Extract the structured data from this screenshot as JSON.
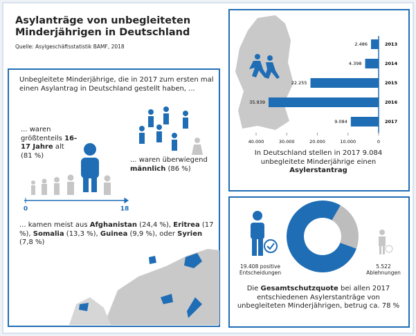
{
  "header": {
    "title": "Asylanträge von unbegleiteten Minderjährigen in Deutschland",
    "source": "Quelle: Asylgeschäftsstatistik BAMF, 2018"
  },
  "left": {
    "intro": "Unbegleitete Minderjährige, die in 2017 zum ersten mal einen Asylantrag in Deutschland gestellt haben, ...",
    "age": [
      {
        "text": "... waren größtenteils "
      },
      {
        "text": "16-17 Jahre",
        "bold": true
      },
      {
        "text": " alt (81 %)"
      }
    ],
    "gender": [
      {
        "text": "... waren überwiegend "
      },
      {
        "text": "männlich",
        "bold": true
      },
      {
        "text": " (86 %)"
      }
    ],
    "age_scale": [
      0,
      18
    ],
    "countries": [
      {
        "text": "... kamen meist aus "
      },
      {
        "text": "Afghanistan",
        "bold": true
      },
      {
        "text": " (24,4 %), "
      },
      {
        "text": "Eritrea",
        "bold": true
      },
      {
        "text": " (17 %), "
      },
      {
        "text": "Somalia",
        "bold": true
      },
      {
        "text": " (13,3 %), "
      },
      {
        "text": "Guinea",
        "bold": true
      },
      {
        "text": " (9,9 %), oder "
      },
      {
        "text": "Syrien",
        "bold": true
      },
      {
        "text": " (7,8 %)"
      }
    ]
  },
  "chart_data": [
    {
      "type": "bar",
      "orientation": "horizontal",
      "categories": [
        "2013",
        "2014",
        "2015",
        "2016",
        "2017"
      ],
      "values": [
        2486,
        4398,
        22255,
        35939,
        9084
      ],
      "value_labels": [
        "2.486",
        "4.398",
        "22.255",
        "35.939",
        "9.084"
      ],
      "color": "#1f6db5",
      "xlim": [
        40000,
        0
      ],
      "xticks": [
        {
          "value": 40000,
          "label": "40.000"
        },
        {
          "value": 30000,
          "label": "30.000"
        },
        {
          "value": 20000,
          "label": "20.000"
        },
        {
          "value": 10000,
          "label": "10.000"
        },
        0
      ]
    },
    {
      "type": "pie",
      "donut": true,
      "categories": [
        "positive Entscheidungen",
        "Ablehnungen"
      ],
      "values": [
        19408,
        5522
      ],
      "value_labels": [
        "19.408",
        "5.522"
      ],
      "colors": [
        "#1f6db5",
        "#bdbdbd"
      ]
    }
  ],
  "right_top": {
    "caption": [
      {
        "text": "In Deutschland stellen in 2017 9.084 unbegleitete Minderjährige einen "
      },
      {
        "text": "Asylerstantrag",
        "bold": true
      }
    ]
  },
  "right_bottom": {
    "caption": [
      {
        "text": "Die "
      },
      {
        "text": "Gesamtschutzquote",
        "bold": true
      },
      {
        "text": " bei allen 2017 entschiedenen Asylerstanträge von unbegleiteten Minderjährigen, betrug ca. 78 %"
      }
    ]
  }
}
